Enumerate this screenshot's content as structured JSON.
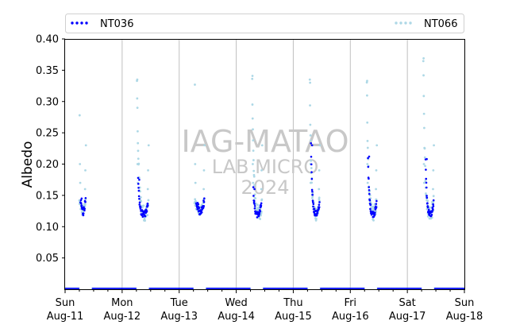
{
  "chart_data": {
    "type": "scatter",
    "title": "",
    "xlabel": "",
    "ylabel": "Albedo",
    "ylim": [
      0.0,
      0.4
    ],
    "yticks": [
      0.05,
      0.1,
      0.15,
      0.2,
      0.25,
      0.3,
      0.35,
      0.4
    ],
    "ytick_labels": [
      "0.05",
      "0.10",
      "0.15",
      "0.20",
      "0.25",
      "0.30",
      "0.35",
      "0.40"
    ],
    "xlim": [
      0,
      7
    ],
    "xtick_labels": [
      {
        "day": "Sun",
        "date": "Aug-11"
      },
      {
        "day": "Mon",
        "date": "Aug-12"
      },
      {
        "day": "Tue",
        "date": "Aug-13"
      },
      {
        "day": "Wed",
        "date": "Aug-14"
      },
      {
        "day": "Thu",
        "date": "Aug-15"
      },
      {
        "day": "Fri",
        "date": "Aug-16"
      },
      {
        "day": "Sat",
        "date": "Aug-17"
      },
      {
        "day": "Sun",
        "date": "Aug-18"
      }
    ],
    "vertical_grid": true,
    "legend_position": "top",
    "series": [
      {
        "name": "NT036",
        "color": "#0000ff",
        "style": "dotted",
        "days": [
          {
            "start": 0.27,
            "end": 0.36,
            "peak": 0.145,
            "shape": "flat"
          },
          {
            "start": 1.28,
            "end": 1.45,
            "peak": 0.175,
            "shape": "decay"
          },
          {
            "start": 2.3,
            "end": 2.44,
            "peak": 0.128,
            "shape": "flat"
          },
          {
            "start": 3.3,
            "end": 3.44,
            "peak": 0.16,
            "shape": "decay"
          },
          {
            "start": 4.31,
            "end": 4.46,
            "peak": 0.23,
            "shape": "decay"
          },
          {
            "start": 5.31,
            "end": 5.46,
            "peak": 0.212,
            "shape": "decay"
          },
          {
            "start": 6.32,
            "end": 6.46,
            "peak": 0.208,
            "shape": "decay"
          }
        ]
      },
      {
        "name": "NT066",
        "color": "#add8e6",
        "style": "dotted",
        "days": [
          {
            "start": 0.25,
            "end": 0.36,
            "peak": 0.278,
            "shape": "flat"
          },
          {
            "start": 1.26,
            "end": 1.46,
            "peak": 0.335,
            "shape": "decay"
          },
          {
            "start": 2.27,
            "end": 2.44,
            "peak": 0.327,
            "shape": "flat"
          },
          {
            "start": 3.28,
            "end": 3.45,
            "peak": 0.341,
            "shape": "decay"
          },
          {
            "start": 4.29,
            "end": 4.46,
            "peak": 0.33,
            "shape": "decay"
          },
          {
            "start": 5.29,
            "end": 5.46,
            "peak": 0.333,
            "shape": "decay"
          },
          {
            "start": 6.28,
            "end": 6.46,
            "peak": 0.369,
            "shape": "decay"
          }
        ]
      }
    ],
    "baseline_value": 0.0
  },
  "watermark": {
    "line1": "IAG-MATAO",
    "line2": "LAB MICRO",
    "line3": "2024"
  }
}
